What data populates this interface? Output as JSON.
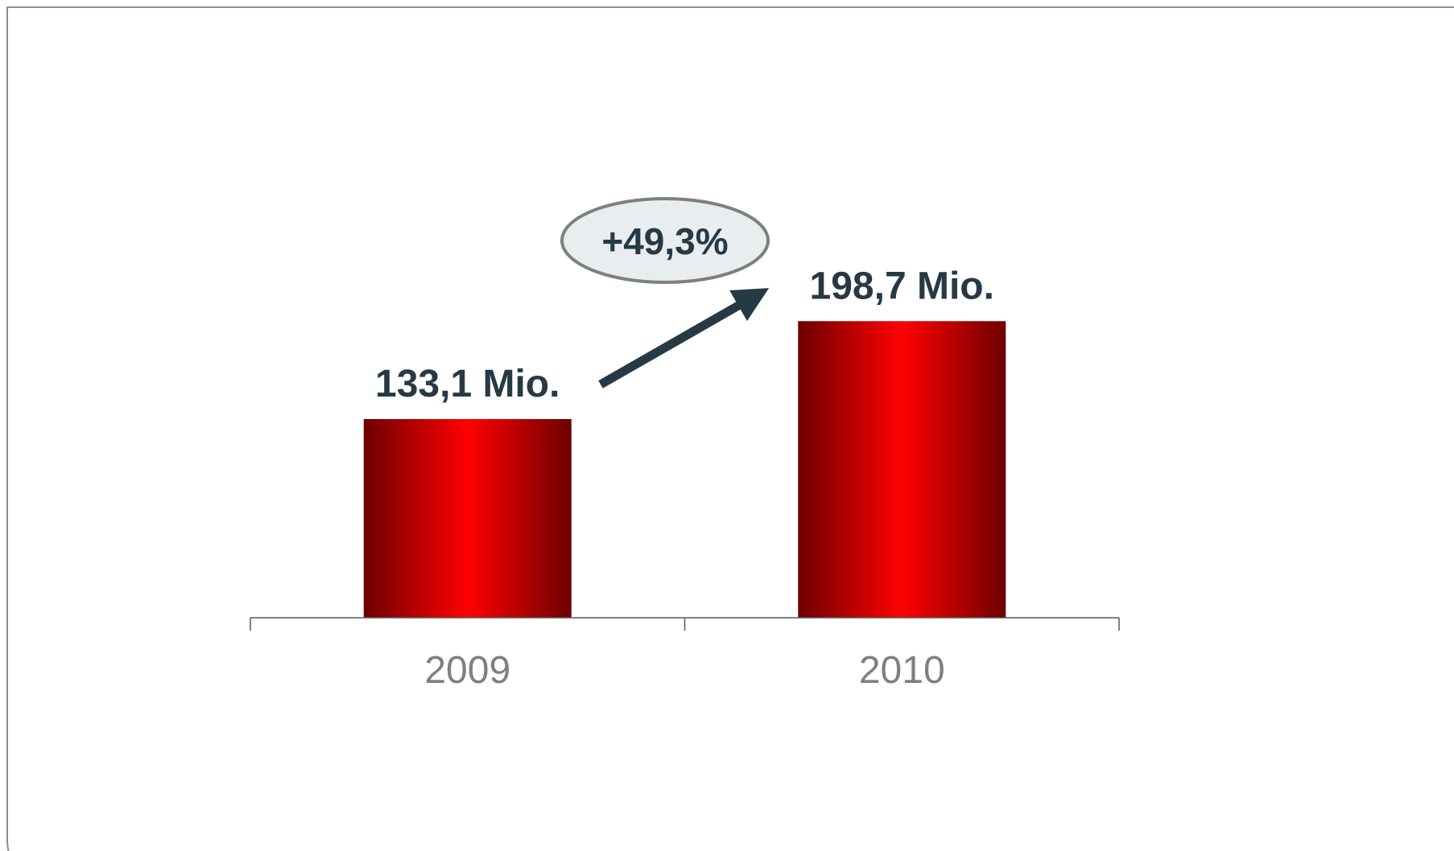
{
  "chart_data": {
    "type": "bar",
    "categories": [
      "2009",
      "2010"
    ],
    "values": [
      133.1,
      198.7
    ],
    "data_labels": [
      "133,1 Mio.",
      "198,7 Mio."
    ],
    "title": "",
    "xlabel": "",
    "ylabel": "",
    "ylim": [
      0,
      300
    ],
    "grid": false,
    "legend": "none",
    "annotation": {
      "text": "+49,3%",
      "type": "growth-arrow"
    },
    "colors": {
      "bar_dark": "#6e0000",
      "bar_bright": "#ff0000",
      "label_text": "#263a44",
      "tick_text": "#7f7f7f",
      "axis": "#595959",
      "arrow": "#263a44",
      "badge_fill": "#e8edf0",
      "badge_stroke": "#7f7f7f"
    }
  }
}
